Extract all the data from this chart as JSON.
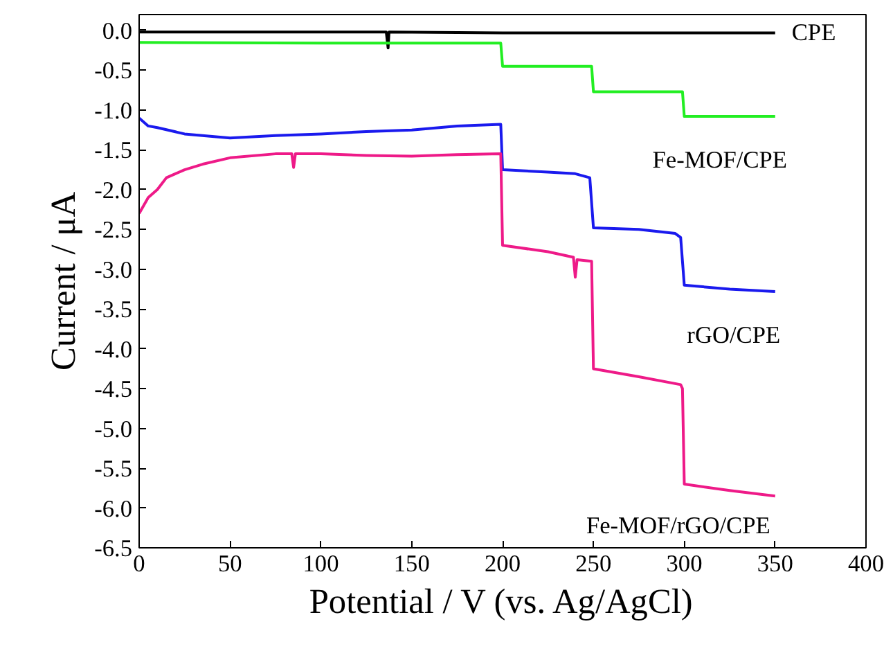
{
  "chart_data": {
    "type": "line",
    "xlabel": "Potential / V (vs. Ag/AgCl)",
    "ylabel": "Current / μA",
    "xlim": [
      0,
      400
    ],
    "ylim": [
      -6.5,
      0.2
    ],
    "xticks": [
      0,
      50,
      100,
      150,
      200,
      250,
      300,
      350,
      400
    ],
    "yticks": [
      {
        "value": 0,
        "label": "0.0"
      },
      {
        "value": -0.5,
        "label": "-0.5"
      },
      {
        "value": -1,
        "label": "-1.0"
      },
      {
        "value": -1.5,
        "label": "-1.5"
      },
      {
        "value": -2,
        "label": "-2.0"
      },
      {
        "value": -2.5,
        "label": "-2.5"
      },
      {
        "value": -3,
        "label": "-3.0"
      },
      {
        "value": -3.5,
        "label": "-3.5"
      },
      {
        "value": -4,
        "label": "-4.0"
      },
      {
        "value": -4.5,
        "label": "-4.5"
      },
      {
        "value": -5,
        "label": "-5.0"
      },
      {
        "value": -5.5,
        "label": "-5.5"
      },
      {
        "value": -6,
        "label": "-6.0"
      },
      {
        "value": -6.5,
        "label": "-6.5"
      }
    ],
    "grid": false,
    "marker": "none",
    "line_style": "solid",
    "series": [
      {
        "name": "CPE",
        "color": "#000000",
        "x": [
          0,
          50,
          100,
          136,
          137,
          137.5,
          138,
          200,
          250,
          300,
          350
        ],
        "values": [
          -0.02,
          -0.02,
          -0.02,
          -0.02,
          -0.22,
          -0.02,
          -0.02,
          -0.03,
          -0.03,
          -0.03,
          -0.03
        ]
      },
      {
        "name": "Fe-MOF/CPE",
        "color": "#22ee22",
        "x": [
          0,
          100,
          199,
          200,
          249,
          250,
          299,
          300,
          350
        ],
        "values": [
          -0.15,
          -0.16,
          -0.16,
          -0.45,
          -0.45,
          -0.77,
          -0.77,
          -1.08,
          -1.08
        ]
      },
      {
        "name": "rGO/CPE",
        "color": "#1a1aee",
        "x": [
          0,
          5,
          10,
          25,
          50,
          75,
          100,
          125,
          150,
          175,
          199,
          200,
          225,
          240,
          248,
          250,
          275,
          295,
          298,
          300,
          325,
          350
        ],
        "values": [
          -1.1,
          -1.2,
          -1.22,
          -1.3,
          -1.35,
          -1.32,
          -1.3,
          -1.27,
          -1.25,
          -1.2,
          -1.18,
          -1.75,
          -1.78,
          -1.8,
          -1.85,
          -2.48,
          -2.5,
          -2.55,
          -2.6,
          -3.2,
          -3.25,
          -3.28
        ]
      },
      {
        "name": "Fe-MOF/rGO/CPE",
        "color": "#ee1a88",
        "x": [
          0,
          5,
          10,
          15,
          25,
          35,
          50,
          75,
          84,
          85,
          86,
          100,
          125,
          150,
          175,
          199,
          200,
          225,
          239,
          240,
          241,
          249,
          250,
          275,
          298,
          299,
          300,
          325,
          350
        ],
        "values": [
          -2.3,
          -2.1,
          -2.0,
          -1.85,
          -1.75,
          -1.68,
          -1.6,
          -1.55,
          -1.55,
          -1.72,
          -1.55,
          -1.55,
          -1.57,
          -1.58,
          -1.56,
          -1.55,
          -2.7,
          -2.78,
          -2.85,
          -3.1,
          -2.88,
          -2.9,
          -4.25,
          -4.35,
          -4.45,
          -4.5,
          -5.7,
          -5.78,
          -5.85
        ]
      }
    ]
  }
}
